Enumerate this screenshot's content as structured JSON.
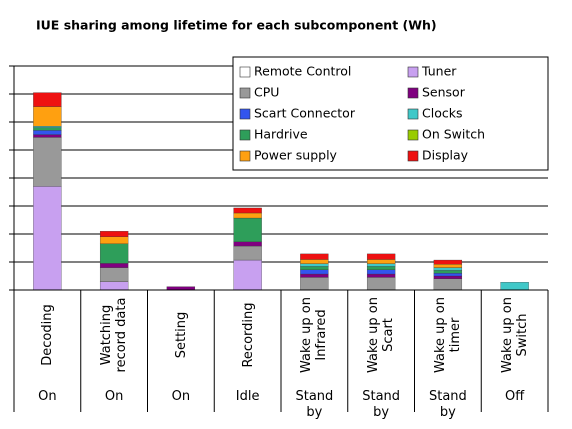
{
  "chart_data": {
    "type": "stacked_bar",
    "title": "IUE sharing among lifetime for each subcomponent (Wh)",
    "categories": [
      "Decoding",
      "Watching record data",
      "Setting",
      "Recording",
      "Wake up on Infrared",
      "Wake up on Scart",
      "Wake up on timer",
      "Wake up on Switch"
    ],
    "modes": [
      "On",
      "On",
      "On",
      "Idle",
      "Stand by",
      "Stand by",
      "Stand by",
      "Off"
    ],
    "ylim": [
      0,
      8
    ],
    "yticks": [
      0,
      1,
      2,
      3,
      4,
      5,
      6,
      7,
      8
    ],
    "grid": true,
    "series": [
      {
        "name": "Tuner",
        "color": "#c8a0f0",
        "values": [
          3.7,
          0.3,
          0,
          1.07,
          0,
          0,
          0,
          0
        ]
      },
      {
        "name": "CPU",
        "color": "#999999",
        "values": [
          1.75,
          0.5,
          0,
          0.5,
          0.45,
          0.45,
          0.4,
          0
        ]
      },
      {
        "name": "Sensor",
        "color": "#800080",
        "values": [
          0.1,
          0.15,
          0.12,
          0.15,
          0.12,
          0.12,
          0.1,
          0
        ]
      },
      {
        "name": "Scart Connector",
        "color": "#3355ee",
        "values": [
          0.15,
          0,
          0,
          0,
          0.15,
          0.15,
          0.1,
          0
        ]
      },
      {
        "name": "Hardrive",
        "color": "#2e9e5a",
        "values": [
          0.1,
          0.7,
          0,
          0.85,
          0.12,
          0.12,
          0.1,
          0
        ]
      },
      {
        "name": "Clocks",
        "color": "#40c8c8",
        "values": [
          0.05,
          0,
          0,
          0,
          0.1,
          0.1,
          0.1,
          0.28
        ]
      },
      {
        "name": "On Switch",
        "color": "#99cc00",
        "values": [
          0,
          0,
          0,
          0,
          0,
          0,
          0,
          0
        ]
      },
      {
        "name": "Remote Control",
        "color": "#ffffff",
        "values": [
          0,
          0,
          0,
          0,
          0,
          0,
          0,
          0
        ]
      },
      {
        "name": "Power supply",
        "color": "#ffa010",
        "values": [
          0.7,
          0.25,
          0,
          0.18,
          0.15,
          0.15,
          0.12,
          0
        ]
      },
      {
        "name": "Display",
        "color": "#ee1111",
        "values": [
          0.5,
          0.2,
          0,
          0.18,
          0.2,
          0.2,
          0.15,
          0
        ]
      }
    ]
  }
}
